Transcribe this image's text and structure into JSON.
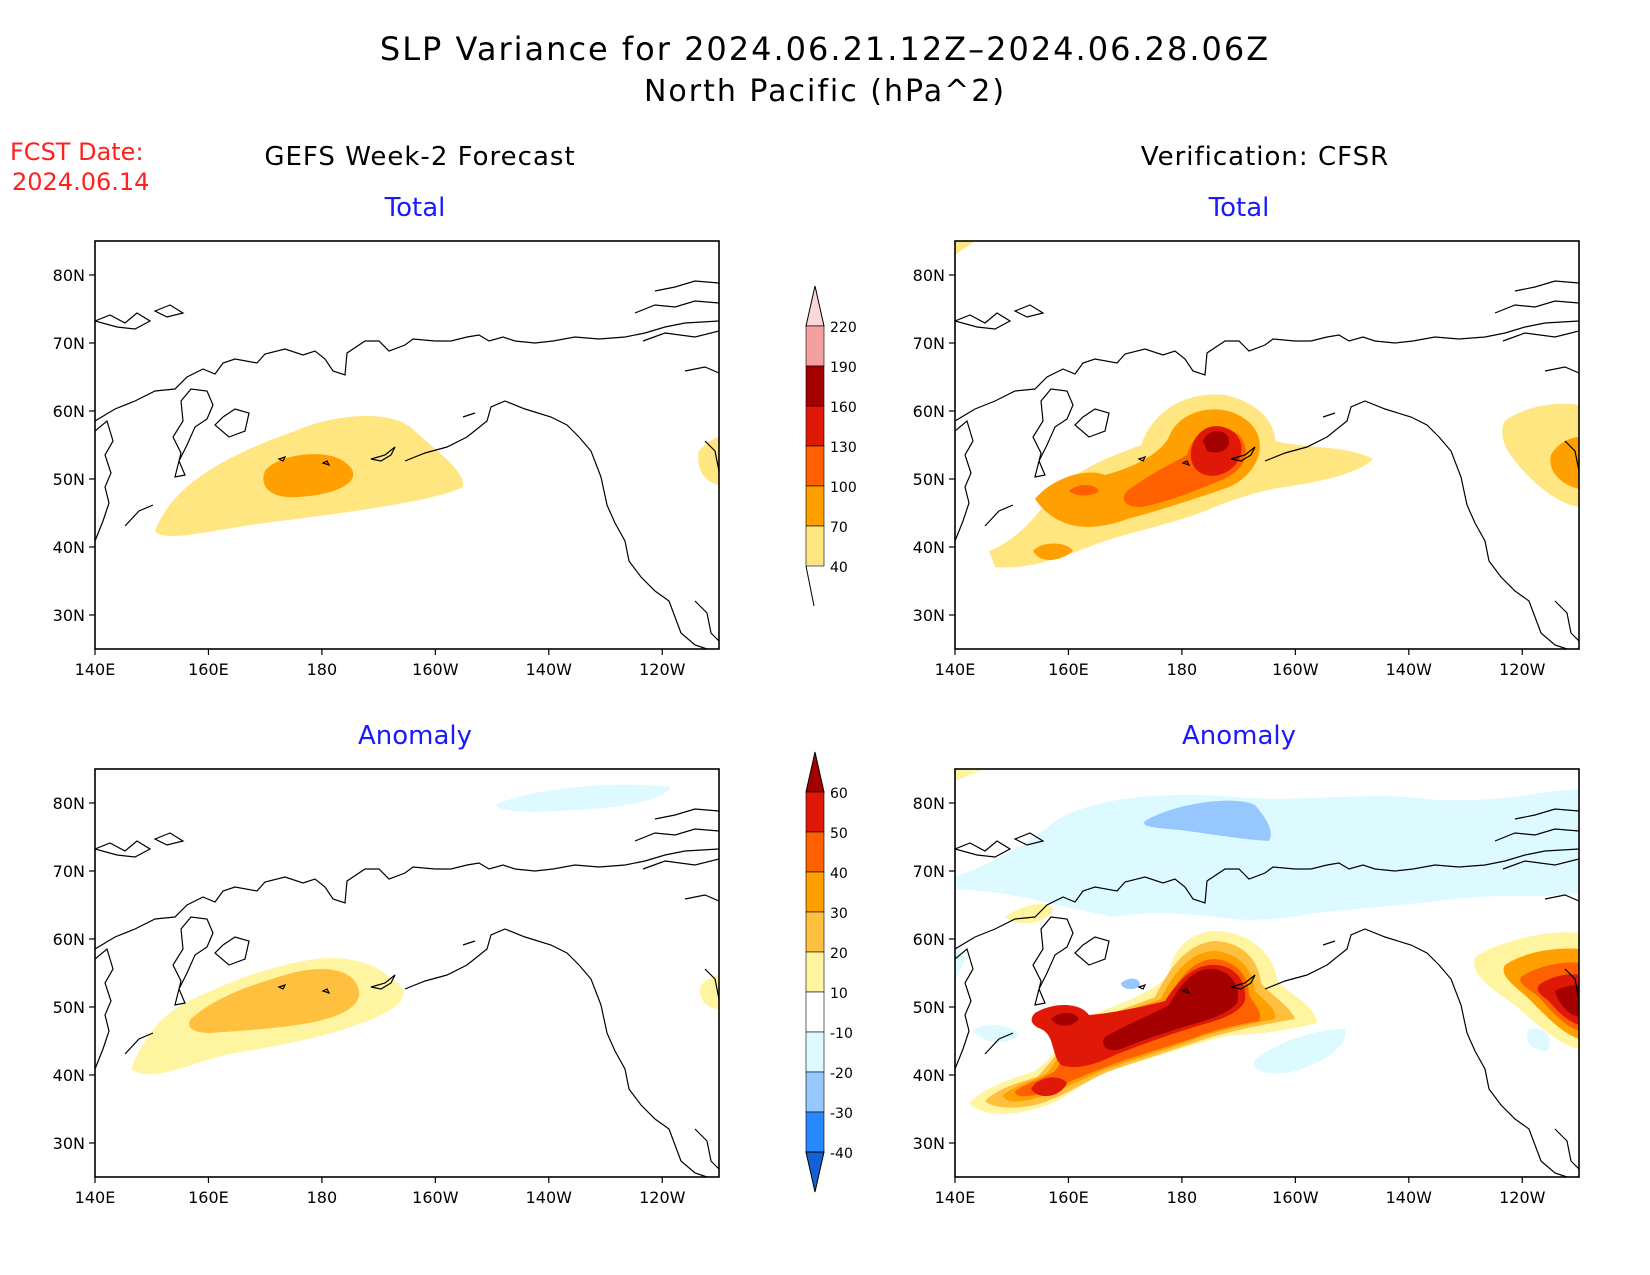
{
  "header": {
    "title_line1": "SLP Variance for 2024.06.21.12Z–2024.06.28.06Z",
    "title_line2": "North Pacific (hPa^2)"
  },
  "fcst_date": {
    "label": "FCST Date:",
    "value": "2024.06.14",
    "color": "#ff2020"
  },
  "columns": {
    "left_title": "GEFS Week-2 Forecast",
    "right_title": "Verification: CFSR"
  },
  "panel_titles": {
    "top": "Total",
    "bottom": "Anomaly",
    "color": "#1a1aff"
  },
  "map": {
    "lat_labels": [
      "80N",
      "70N",
      "60N",
      "50N",
      "40N",
      "30N"
    ],
    "lat_values": [
      80,
      70,
      60,
      50,
      40,
      30
    ],
    "lon_labels": [
      "140E",
      "160E",
      "180",
      "160W",
      "140W",
      "120W"
    ],
    "lon_values": [
      140,
      160,
      180,
      200,
      220,
      240
    ],
    "lon_range": [
      140,
      250
    ],
    "lat_range": [
      25,
      85
    ]
  },
  "colorbars": {
    "total": {
      "levels": [
        "40",
        "70",
        "100",
        "130",
        "160",
        "190",
        "220"
      ],
      "colors": [
        "#ffe680",
        "#ffa000",
        "#ff6000",
        "#e01808",
        "#a50000",
        "#f5a0a0",
        "#fbd8d8"
      ]
    },
    "anomaly": {
      "levels": [
        "-40",
        "-30",
        "-20",
        "-10",
        "10",
        "20",
        "30",
        "40",
        "50",
        "60"
      ],
      "colors": [
        "#1460d8",
        "#2888ff",
        "#96c8ff",
        "#dcfaff",
        "#ffffff",
        "#fff5a0",
        "#ffc040",
        "#ffa000",
        "#ff6000",
        "#e01808",
        "#a50000"
      ]
    }
  }
}
